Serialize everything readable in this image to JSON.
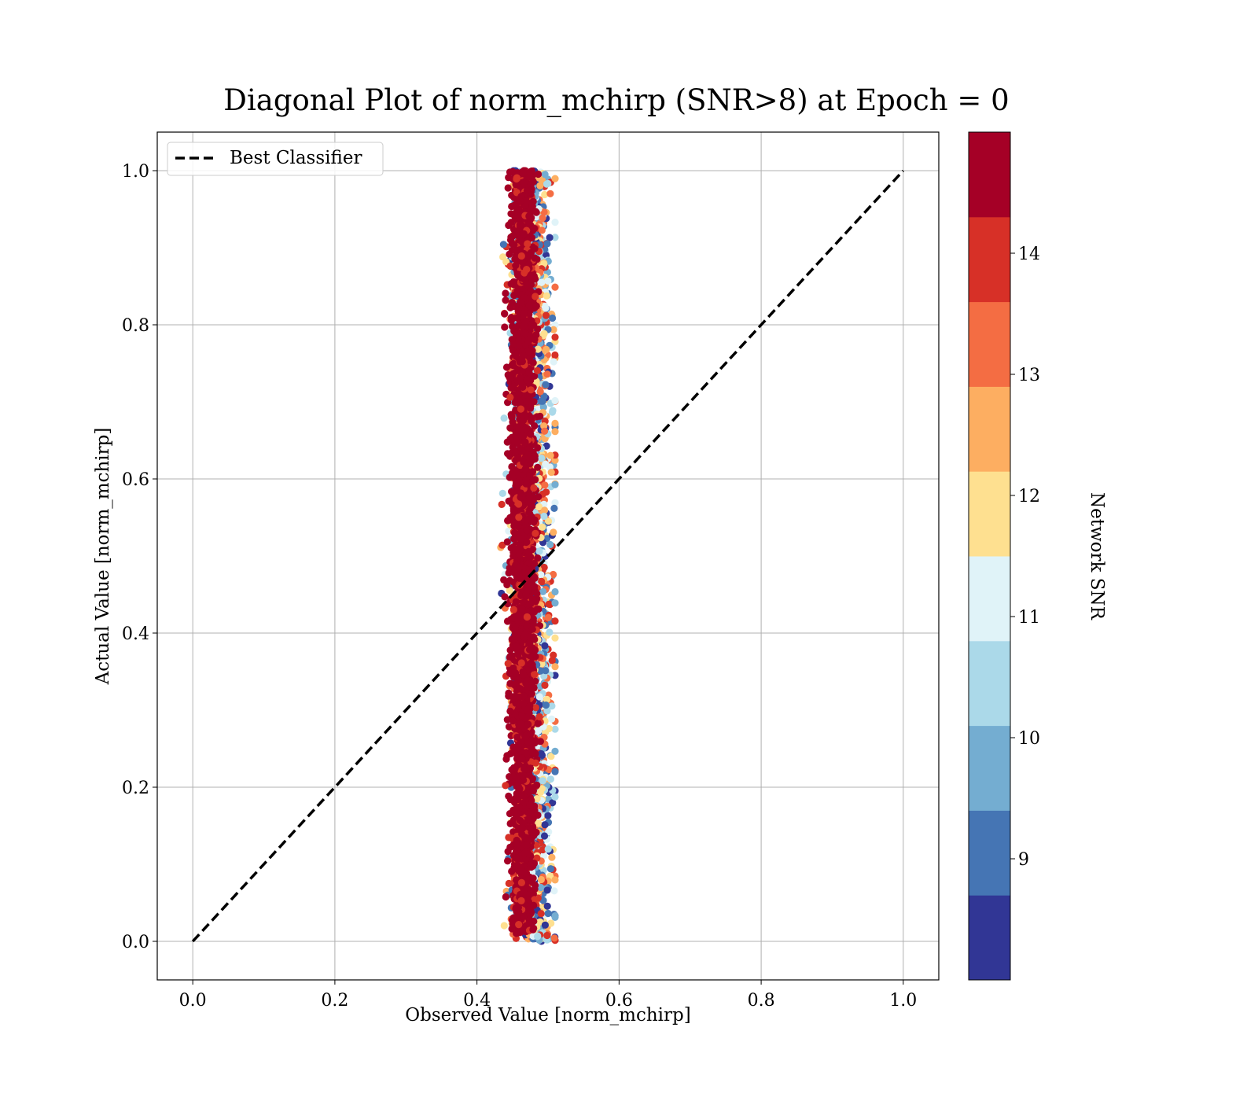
{
  "chart_data": {
    "type": "scatter",
    "title": "Diagonal Plot of norm_mchirp (SNR>8) at Epoch = 0",
    "xlabel": "Observed Value [norm_mchirp]",
    "ylabel": "Actual Value [norm_mchirp]",
    "xlim": [
      -0.05,
      1.05
    ],
    "ylim": [
      -0.05,
      1.05
    ],
    "x_ticks": [
      "0.0",
      "0.2",
      "0.4",
      "0.6",
      "0.8",
      "1.0"
    ],
    "y_ticks": [
      "0.0",
      "0.2",
      "0.4",
      "0.6",
      "0.8",
      "1.0"
    ],
    "grid": true,
    "legend": {
      "position": "top-left",
      "entries": [
        "Best Classifier"
      ]
    },
    "reference_line": {
      "name": "Best Classifier",
      "style": "dashed",
      "color": "#000000",
      "x": [
        0.0,
        1.0
      ],
      "y": [
        0.0,
        1.0
      ]
    },
    "scatter_summary": {
      "x_range": [
        0.43,
        0.51
      ],
      "x_center": 0.465,
      "y_range": [
        0.0,
        1.0
      ],
      "high_snr_color_dominant": "#a50026",
      "low_snr_on_right_edge": true
    },
    "colorbar": {
      "label": "Network SNR",
      "range": [
        8.0,
        15.0
      ],
      "tick_values": [
        9,
        10,
        11,
        12,
        13,
        14
      ],
      "tick_labels": [
        "9",
        "10",
        "11",
        "12",
        "13",
        "14"
      ],
      "colors": [
        "#313695",
        "#4575b4",
        "#74add1",
        "#abd9e9",
        "#e0f3f8",
        "#fee090",
        "#fdae61",
        "#f46d43",
        "#d73027",
        "#a50026"
      ],
      "colormap": "RdYlBu_r"
    }
  }
}
